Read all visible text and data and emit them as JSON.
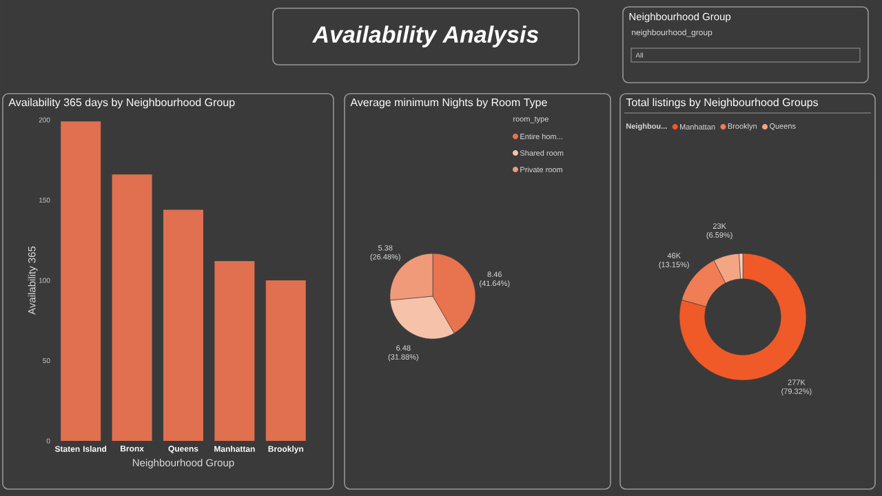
{
  "chart_data": [
    {
      "type": "other",
      "title": "Availability Analysis"
    },
    {
      "type": "other",
      "title": "Neighbourhood Group",
      "annotations": [
        "neighbourhood_group",
        "All"
      ]
    },
    {
      "type": "bar",
      "title": "Availability 365 days by Neighbourhood Group",
      "xlabel": "Neighbourhood Group",
      "ylabel": "Availability 365",
      "categories": [
        "Staten Island",
        "Bronx",
        "Queens",
        "Manhattan",
        "Brooklyn"
      ],
      "values": [
        199,
        166,
        144,
        112,
        100
      ],
      "color": "#e07050",
      "ylim": [
        0,
        200
      ],
      "yticks": [
        0,
        50,
        100,
        150,
        200
      ]
    },
    {
      "type": "pie",
      "title": "Average minimum Nights by Room Type",
      "legend_title": "room_type",
      "legend": "top right",
      "categories": [
        "Entire hom...",
        "Shared room",
        "Private room"
      ],
      "values": [
        8.46,
        6.48,
        5.38
      ],
      "colors": [
        "#e8734f",
        "#f7c2aa",
        "#f09a7a"
      ],
      "value_labels": [
        "8.46 (41.64%)",
        "6.48 (31.88%)",
        "5.38 (26.48%)"
      ]
    },
    {
      "type": "donut",
      "title": "Total listings by Neighbourhood Groups",
      "legend_title": "Neighbou...",
      "legend": "top",
      "categories": [
        "Manhattan",
        "Brooklyn",
        "Queens",
        null
      ],
      "values": [
        79.32,
        13.15,
        6.59,
        0.94
      ],
      "colors": [
        "#f05a28",
        "#f07d55",
        "#f4a584",
        "#f8cdb8"
      ],
      "value_labels": [
        "277K (79.32%)",
        "46K (13.15%)",
        "23K (6.59%)",
        null
      ]
    }
  ]
}
